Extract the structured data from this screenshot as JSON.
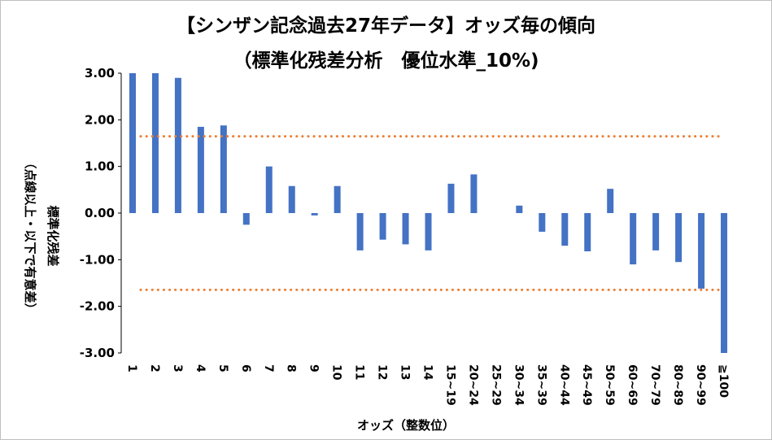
{
  "chart_data": {
    "type": "bar",
    "title": "【シンザン記念過去27年データ】オッズ毎の傾向",
    "subtitle": "（標準化残差分析　優位水準_10%)",
    "xlabel": "オッズ（整数位）",
    "ylabel_line1": "標準化残差",
    "ylabel_line2": "（点線以上・以下で有意差）",
    "ylim": [
      -3.0,
      3.0
    ],
    "yticks": [
      "3.00",
      "2.00",
      "1.00",
      "0.00",
      "-1.00",
      "-2.00",
      "-3.00"
    ],
    "ytick_values": [
      3,
      2,
      1,
      0,
      -1,
      -2,
      -3
    ],
    "categories": [
      "1",
      "2",
      "3",
      "4",
      "5",
      "6",
      "7",
      "8",
      "9",
      "10",
      "11",
      "12",
      "13",
      "14",
      "15~19",
      "20~24",
      "25~29",
      "30~34",
      "35~39",
      "40~44",
      "45~49",
      "50~59",
      "60~69",
      "70~79",
      "80~89",
      "90~99",
      "≧100"
    ],
    "values": [
      3.0,
      3.0,
      2.9,
      1.85,
      1.88,
      -0.25,
      1.0,
      0.58,
      -0.05,
      0.58,
      -0.8,
      -0.57,
      -0.67,
      -0.8,
      0.63,
      0.83,
      0.0,
      0.16,
      -0.4,
      -0.7,
      -0.82,
      0.52,
      -1.1,
      -0.8,
      -1.05,
      -1.62,
      -3.0
    ],
    "thresholds": [
      1.645,
      -1.645
    ],
    "colors": {
      "bar": "#4472c4",
      "threshold": "#ed7d31"
    },
    "grid": false,
    "legend": "none"
  }
}
